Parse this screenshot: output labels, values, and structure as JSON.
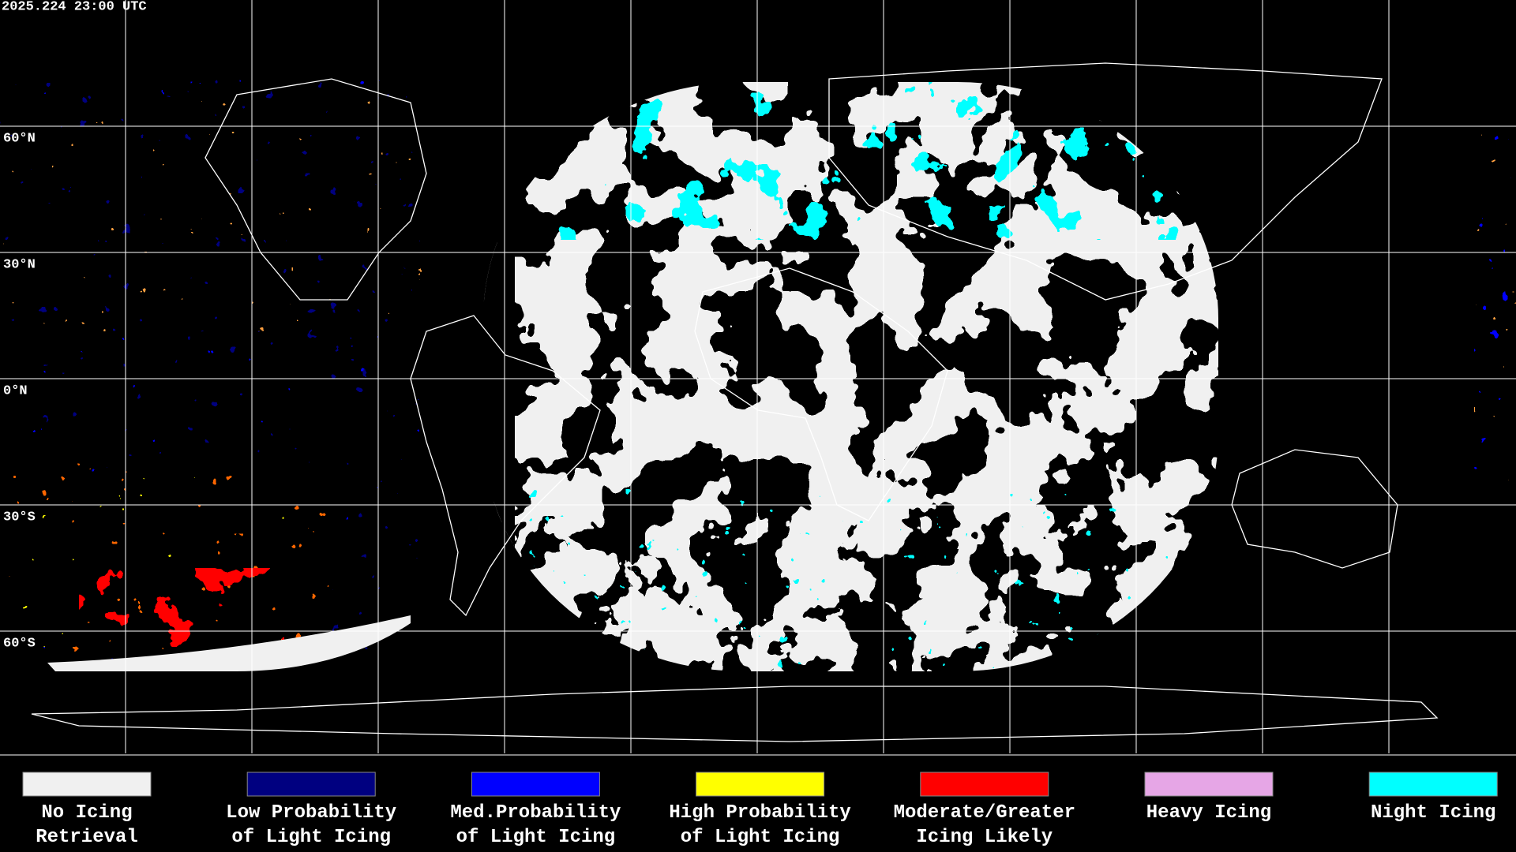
{
  "header": {
    "timestamp": "2025.224 23:00 UTC"
  },
  "map": {
    "latitude_labels": [
      "60°N",
      "30°N",
      "0°N",
      "30°S",
      "60°S"
    ]
  },
  "legend": [
    {
      "label_lines": [
        "No Icing",
        "Retrieval"
      ],
      "color": "#f0f0f0"
    },
    {
      "label_lines": [
        "Low Probability",
        "of Light Icing"
      ],
      "color": "#000080"
    },
    {
      "label_lines": [
        "Med.Probability",
        "of Light Icing"
      ],
      "color": "#0000ff"
    },
    {
      "label_lines": [
        "High Probability",
        "of Light Icing"
      ],
      "color": "#ffff00"
    },
    {
      "label_lines": [
        "Moderate/Greater",
        "Icing Likely"
      ],
      "color": "#ff0000"
    },
    {
      "label_lines": [
        "Heavy Icing"
      ],
      "color": "#e6a6e6"
    },
    {
      "label_lines": [
        "Night Icing"
      ],
      "color": "#00ffff"
    }
  ]
}
